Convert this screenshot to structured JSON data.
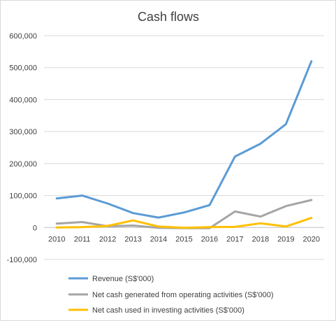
{
  "chart_data": {
    "type": "line",
    "title": "Cash flows",
    "xlabel": "",
    "ylabel": "",
    "x": [
      "2010",
      "2011",
      "2012",
      "2013",
      "2014",
      "2015",
      "2016",
      "2017",
      "2018",
      "2019",
      "2020"
    ],
    "ylim": [
      -100000,
      600000
    ],
    "yticks": [
      -100000,
      0,
      100000,
      200000,
      300000,
      400000,
      500000,
      600000
    ],
    "ytick_labels": [
      "-100,000",
      "0",
      "100,000",
      "200,000",
      "300,000",
      "400,000",
      "500,000",
      "600,000"
    ],
    "grid": true,
    "legend_position": "bottom",
    "series": [
      {
        "name": "Revenue (S$'000)",
        "color": "#5b9bd5",
        "values": [
          91000,
          100000,
          75000,
          45000,
          31000,
          47000,
          70000,
          222000,
          262000,
          323000,
          520000
        ]
      },
      {
        "name": "Net cash generated from operating activities (S$'000)",
        "color": "#a5a5a5",
        "values": [
          12000,
          17000,
          4000,
          6000,
          -1000,
          -2000,
          -2000,
          50000,
          34000,
          67000,
          86000
        ]
      },
      {
        "name": "Net cash used in investing activities (S$'000)",
        "color": "#ffc000",
        "values": [
          0,
          1000,
          5000,
          22000,
          3000,
          -1000,
          1000,
          2000,
          13000,
          3000,
          30000
        ]
      }
    ]
  }
}
